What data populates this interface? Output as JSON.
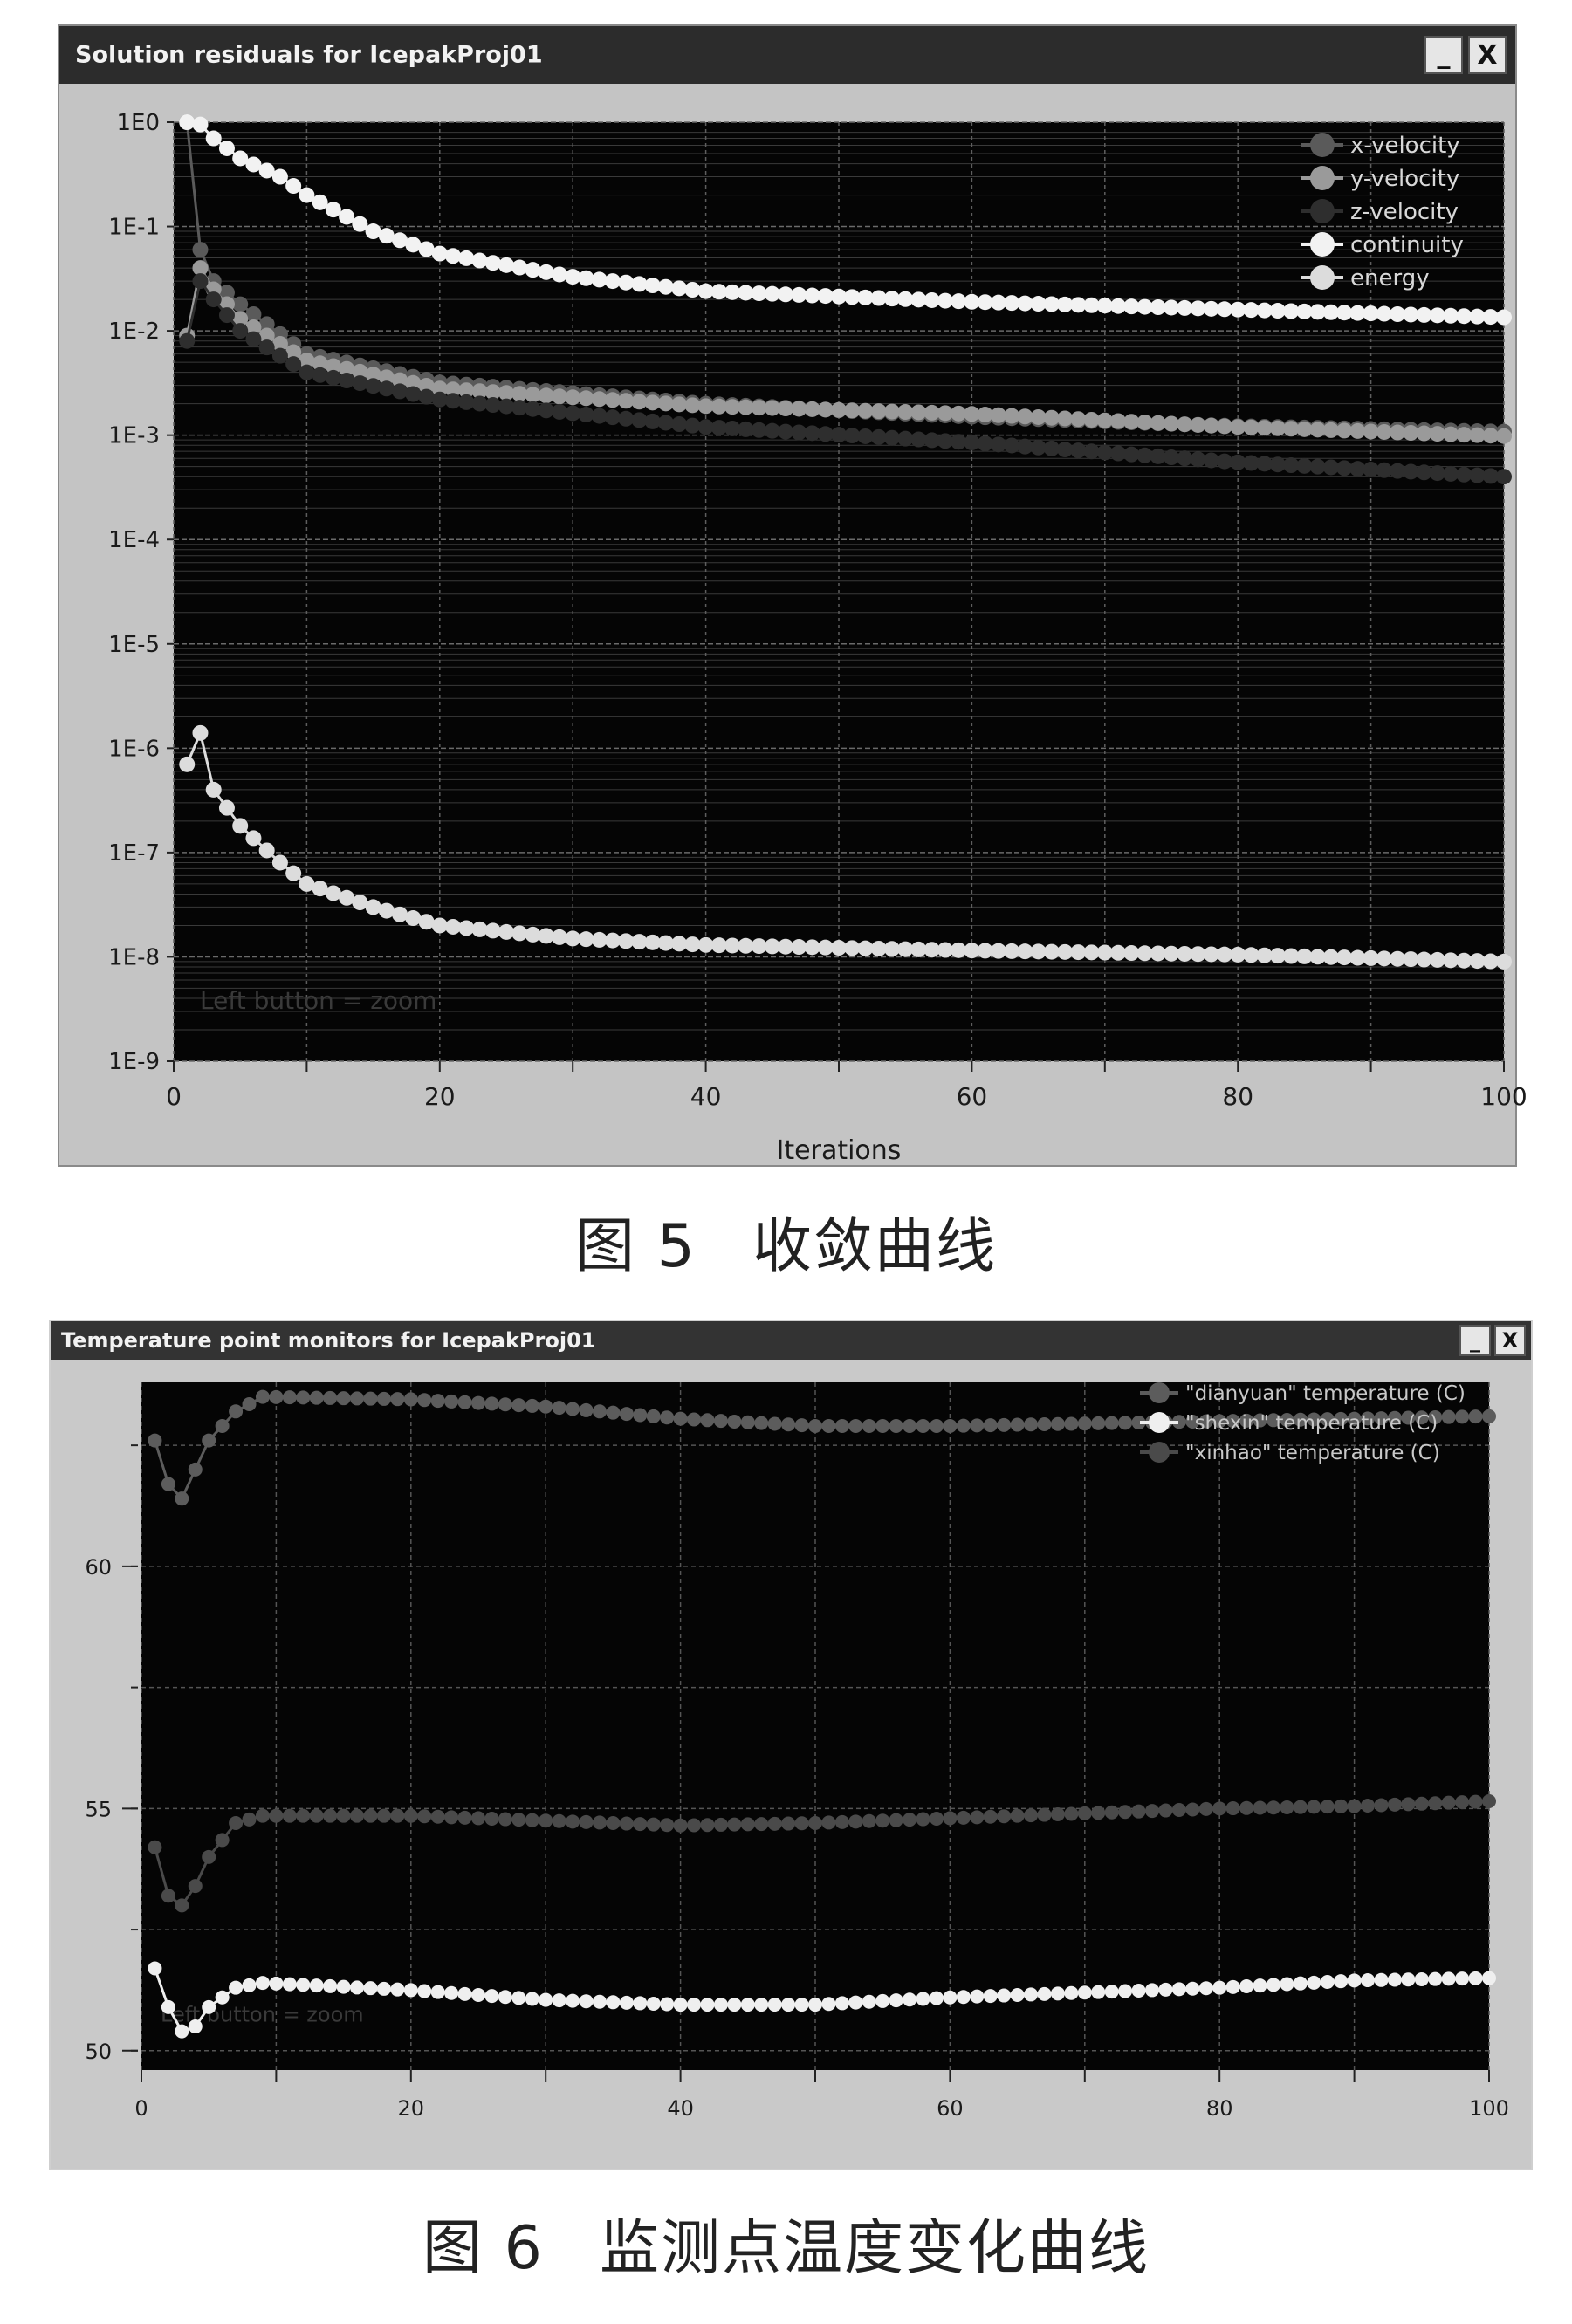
{
  "fig5": {
    "window_title": "Solution residuals for IcepakProj01",
    "minimize_label": "_",
    "close_label": "X",
    "caption_num": "图 5",
    "caption_text": "收敛曲线",
    "xlabel": "Iterations",
    "hint": "Left button = zoom",
    "chart_data": {
      "type": "line",
      "title": "Solution residuals for IcepakProj01",
      "xlabel": "Iterations",
      "ylabel": "",
      "yscale": "log",
      "xlim": [
        0,
        100
      ],
      "ylim_exp": [
        -9,
        0
      ],
      "x_ticks": [
        0,
        20,
        40,
        60,
        80,
        100
      ],
      "y_ticks": [
        "1E0",
        "1E-1",
        "1E-2",
        "1E-3",
        "1E-4",
        "1E-5",
        "1E-6",
        "1E-7",
        "1E-8",
        "1E-9"
      ],
      "grid": true,
      "legend_position": "top-right",
      "series": [
        {
          "name": "x-velocity",
          "color": "#5a5a5a",
          "keypoints": [
            [
              1,
              1.0
            ],
            [
              2,
              0.06
            ],
            [
              3,
              0.03
            ],
            [
              5,
              0.018
            ],
            [
              10,
              0.006
            ],
            [
              20,
              0.0032
            ],
            [
              40,
              0.002
            ],
            [
              60,
              0.0015
            ],
            [
              80,
              0.00122
            ],
            [
              100,
              0.00108
            ]
          ]
        },
        {
          "name": "y-velocity",
          "color": "#9a9a9a",
          "keypoints": [
            [
              1,
              0.009
            ],
            [
              2,
              0.04
            ],
            [
              3,
              0.025
            ],
            [
              5,
              0.013
            ],
            [
              10,
              0.0052
            ],
            [
              20,
              0.0028
            ],
            [
              40,
              0.0019
            ],
            [
              60,
              0.0016
            ],
            [
              80,
              0.0012
            ],
            [
              100,
              0.00098
            ]
          ]
        },
        {
          "name": "z-velocity",
          "color": "#2e2e2e",
          "keypoints": [
            [
              1,
              0.008
            ],
            [
              2,
              0.03
            ],
            [
              3,
              0.02
            ],
            [
              5,
              0.01
            ],
            [
              10,
              0.004
            ],
            [
              20,
              0.0022
            ],
            [
              40,
              0.0012
            ],
            [
              60,
              0.00085
            ],
            [
              80,
              0.00055
            ],
            [
              100,
              0.0004
            ]
          ]
        },
        {
          "name": "continuity",
          "color": "#f2f2f2",
          "keypoints": [
            [
              1,
              1.0
            ],
            [
              2,
              0.95
            ],
            [
              3,
              0.7
            ],
            [
              5,
              0.45
            ],
            [
              8,
              0.3
            ],
            [
              10,
              0.2
            ],
            [
              15,
              0.09
            ],
            [
              20,
              0.055
            ],
            [
              30,
              0.033
            ],
            [
              40,
              0.024
            ],
            [
              60,
              0.019
            ],
            [
              80,
              0.016
            ],
            [
              100,
              0.0135
            ]
          ]
        },
        {
          "name": "energy",
          "color": "#dcdcdc",
          "keypoints": [
            [
              1,
              7e-07
            ],
            [
              2,
              1.4e-06
            ],
            [
              3,
              4e-07
            ],
            [
              5,
              1.8e-07
            ],
            [
              8,
              8e-08
            ],
            [
              10,
              5e-08
            ],
            [
              15,
              3e-08
            ],
            [
              20,
              2e-08
            ],
            [
              30,
              1.5e-08
            ],
            [
              40,
              1.3e-08
            ],
            [
              60,
              1.15e-08
            ],
            [
              80,
              1.05e-08
            ],
            [
              100,
              9e-09
            ]
          ]
        }
      ]
    }
  },
  "fig6": {
    "window_title": "Temperature point monitors for IcepakProj01",
    "minimize_label": "_",
    "close_label": "X",
    "caption_num": "图 6",
    "caption_text": "监测点温度变化曲线",
    "hint": "Left button = zoom",
    "chart_data": {
      "type": "line",
      "title": "Temperature point monitors for IcepakProj01",
      "xlabel": "",
      "ylabel": "",
      "xlim": [
        0,
        100
      ],
      "ylim": [
        49.6,
        63.8
      ],
      "x_ticks": [
        0,
        20,
        40,
        60,
        80,
        100
      ],
      "y_ticks": [
        50,
        55,
        60
      ],
      "grid": true,
      "legend_position": "top-right",
      "series": [
        {
          "name": "\"dianyuan\" temperature (C)",
          "color": "#5c5c5c",
          "keypoints": [
            [
              1,
              62.6
            ],
            [
              2,
              61.7
            ],
            [
              3,
              61.4
            ],
            [
              4,
              62.0
            ],
            [
              5,
              62.6
            ],
            [
              7,
              63.2
            ],
            [
              9,
              63.5
            ],
            [
              20,
              63.45
            ],
            [
              30,
              63.3
            ],
            [
              40,
              63.05
            ],
            [
              50,
              62.9
            ],
            [
              60,
              62.9
            ],
            [
              70,
              62.95
            ],
            [
              80,
              63.0
            ],
            [
              90,
              63.05
            ],
            [
              100,
              63.1
            ]
          ]
        },
        {
          "name": "\"shexin\" temperature (C)",
          "color": "#efefef",
          "keypoints": [
            [
              1,
              51.7
            ],
            [
              2,
              50.9
            ],
            [
              3,
              50.4
            ],
            [
              4,
              50.5
            ],
            [
              5,
              50.9
            ],
            [
              7,
              51.3
            ],
            [
              9,
              51.4
            ],
            [
              20,
              51.25
            ],
            [
              30,
              51.05
            ],
            [
              40,
              50.95
            ],
            [
              50,
              50.95
            ],
            [
              60,
              51.1
            ],
            [
              70,
              51.2
            ],
            [
              80,
              51.3
            ],
            [
              90,
              51.45
            ],
            [
              100,
              51.5
            ]
          ]
        },
        {
          "name": "\"xinhao\" temperature (C)",
          "color": "#4a4a4a",
          "keypoints": [
            [
              1,
              54.2
            ],
            [
              2,
              53.2
            ],
            [
              3,
              53.0
            ],
            [
              4,
              53.4
            ],
            [
              5,
              54.0
            ],
            [
              7,
              54.7
            ],
            [
              9,
              54.85
            ],
            [
              20,
              54.85
            ],
            [
              30,
              54.75
            ],
            [
              40,
              54.65
            ],
            [
              50,
              54.7
            ],
            [
              60,
              54.8
            ],
            [
              70,
              54.9
            ],
            [
              80,
              55.0
            ],
            [
              90,
              55.05
            ],
            [
              100,
              55.15
            ]
          ]
        }
      ]
    }
  }
}
